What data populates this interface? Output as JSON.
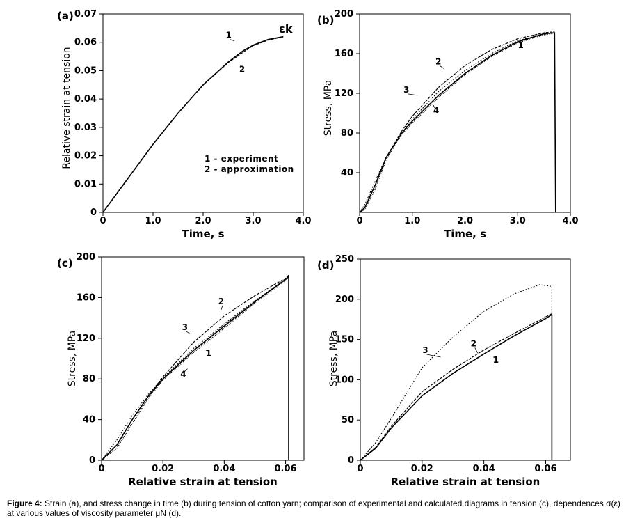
{
  "caption": {
    "label": "Figure 4:",
    "text": "Strain (a), and stress change in time (b) during tension of cotton yarn; comparison of experimental and calculated diagrams in tension (c), dependences σ(ε) at various values of viscosity parameter μN (d)."
  },
  "chart_data": [
    {
      "panel": "(a)",
      "type": "line",
      "xlabel": "Time, s",
      "ylabel": "Relative strain at tension",
      "xlim": [
        0,
        4.0
      ],
      "ylim": [
        0,
        0.07
      ],
      "xticks": [
        "0",
        "1.0",
        "2.0",
        "3.0",
        "4.0"
      ],
      "yticks": [
        "0",
        "0.01",
        "0.02",
        "0.03",
        "0.04",
        "0.05",
        "0.06",
        "0.07"
      ],
      "annotation": "εk",
      "legend": [
        "1 - experiment",
        "2 - approximation"
      ],
      "series": [
        {
          "name": "1",
          "x": [
            0,
            0.5,
            1.0,
            1.5,
            2.0,
            2.5,
            2.8,
            3.0,
            3.3,
            3.6
          ],
          "y": [
            0,
            0.012,
            0.024,
            0.035,
            0.045,
            0.053,
            0.057,
            0.059,
            0.061,
            0.062
          ]
        },
        {
          "name": "2",
          "x": [
            0,
            0.5,
            1.0,
            1.5,
            2.0,
            2.5,
            2.8,
            3.0,
            3.3,
            3.6
          ],
          "y": [
            0,
            0.0121,
            0.0241,
            0.0351,
            0.0449,
            0.0528,
            0.0565,
            0.0588,
            0.0608,
            0.0619
          ]
        }
      ]
    },
    {
      "panel": "(b)",
      "type": "line",
      "xlabel": "Time, s",
      "ylabel": "Stress, MPa",
      "xlim": [
        0,
        4.0
      ],
      "ylim": [
        0,
        200
      ],
      "xticks": [
        "0",
        "1.0",
        "2.0",
        "3.0",
        "4.0"
      ],
      "yticks": [
        "40",
        "80",
        "120",
        "160",
        "200"
      ],
      "series": [
        {
          "name": "1",
          "x": [
            0,
            0.1,
            0.3,
            0.5,
            0.8,
            1.0,
            1.5,
            2.0,
            2.5,
            3.0,
            3.5,
            3.7,
            3.72
          ],
          "y": [
            0,
            5,
            28,
            55,
            80,
            92,
            118,
            140,
            158,
            172,
            180,
            181,
            0
          ]
        },
        {
          "name": "2",
          "x": [
            0,
            0.1,
            0.3,
            0.5,
            0.8,
            1.0,
            1.5,
            2.0,
            2.5,
            3.0,
            3.5,
            3.7
          ],
          "y": [
            0,
            5,
            28,
            55,
            82,
            97,
            126,
            148,
            164,
            175,
            181,
            182
          ]
        },
        {
          "name": "3",
          "x": [
            0,
            0.1,
            0.3,
            0.5,
            0.8,
            1.0,
            1.5,
            2.0,
            2.5,
            3.0,
            3.5,
            3.7
          ],
          "y": [
            0,
            8,
            32,
            55,
            80,
            94,
            122,
            143,
            160,
            173,
            180,
            181
          ]
        },
        {
          "name": "4",
          "x": [
            0,
            0.1,
            0.3,
            0.5,
            0.8,
            1.0,
            1.5,
            2.0,
            2.5,
            3.0,
            3.5,
            3.7
          ],
          "y": [
            0,
            3,
            24,
            53,
            79,
            90,
            116,
            139,
            157,
            171,
            179,
            181
          ]
        }
      ],
      "curve_labels": [
        "1",
        "2",
        "3",
        "4"
      ]
    },
    {
      "panel": "(c)",
      "type": "line",
      "xlabel": "Relative strain at tension",
      "ylabel": "Stress, MPa",
      "xlim": [
        0,
        0.066
      ],
      "ylim": [
        0,
        200
      ],
      "xticks": [
        "0",
        "0.02",
        "0.04",
        "0.06"
      ],
      "yticks": [
        "0",
        "40",
        "80",
        "120",
        "160",
        "200"
      ],
      "series": [
        {
          "name": "1",
          "x": [
            0,
            0.005,
            0.01,
            0.015,
            0.02,
            0.03,
            0.04,
            0.05,
            0.06,
            0.061,
            0.061
          ],
          "y": [
            0,
            15,
            40,
            62,
            80,
            108,
            132,
            156,
            178,
            181,
            0
          ]
        },
        {
          "name": "2",
          "x": [
            0,
            0.005,
            0.01,
            0.015,
            0.02,
            0.03,
            0.04,
            0.05,
            0.06,
            0.061
          ],
          "y": [
            0,
            15,
            40,
            62,
            82,
            116,
            142,
            162,
            179,
            182
          ]
        },
        {
          "name": "3",
          "x": [
            0,
            0.005,
            0.01,
            0.015,
            0.02,
            0.03,
            0.04,
            0.05,
            0.06,
            0.061
          ],
          "y": [
            0,
            20,
            44,
            64,
            81,
            110,
            134,
            157,
            178,
            181
          ]
        },
        {
          "name": "4",
          "x": [
            0,
            0.005,
            0.01,
            0.015,
            0.02,
            0.03,
            0.04,
            0.05,
            0.06,
            0.061
          ],
          "y": [
            0,
            12,
            36,
            60,
            79,
            106,
            130,
            155,
            177,
            181
          ]
        }
      ],
      "curve_labels": [
        "1",
        "2",
        "3",
        "4"
      ]
    },
    {
      "panel": "(d)",
      "type": "line",
      "xlabel": "Relative strain at tension",
      "ylabel": "Stress, MPa",
      "xlim": [
        0,
        0.068
      ],
      "ylim": [
        0,
        250
      ],
      "xticks": [
        "0",
        "0.02",
        "0.04",
        "0.06"
      ],
      "yticks": [
        "0",
        "50",
        "100",
        "150",
        "200",
        "250"
      ],
      "series": [
        {
          "name": "1",
          "x": [
            0,
            0.005,
            0.01,
            0.02,
            0.03,
            0.04,
            0.05,
            0.06,
            0.062,
            0.062
          ],
          "y": [
            0,
            15,
            40,
            80,
            108,
            132,
            155,
            176,
            181,
            0
          ]
        },
        {
          "name": "2",
          "x": [
            0,
            0.005,
            0.01,
            0.02,
            0.03,
            0.04,
            0.05,
            0.06,
            0.062
          ],
          "y": [
            0,
            16,
            42,
            85,
            113,
            137,
            158,
            178,
            182
          ]
        },
        {
          "name": "3",
          "x": [
            0,
            0.005,
            0.01,
            0.02,
            0.03,
            0.04,
            0.05,
            0.058,
            0.062,
            0.062
          ],
          "y": [
            0,
            22,
            52,
            115,
            153,
            185,
            207,
            218,
            216,
            0
          ]
        }
      ],
      "curve_labels": [
        "1",
        "2",
        "3"
      ]
    }
  ]
}
